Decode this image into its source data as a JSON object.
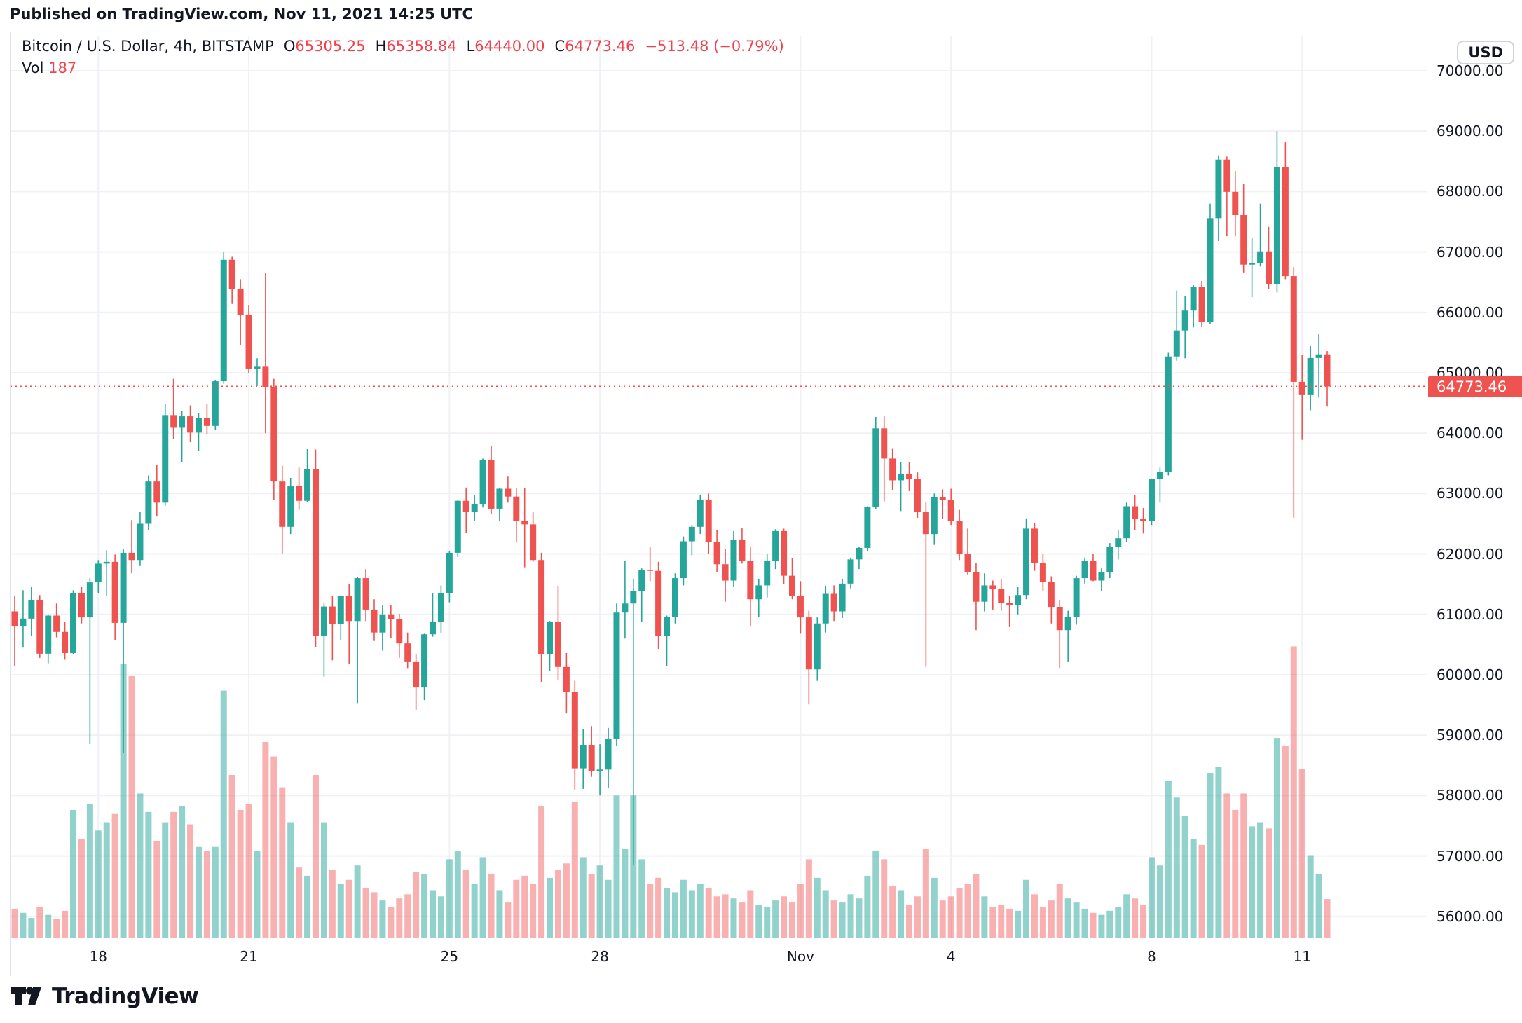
{
  "published_line": "Published on TradingView.com, Nov 11, 2021 14:25 UTC",
  "logo": {
    "brand": "TradingView"
  },
  "axis_button": "USD",
  "legend": {
    "title": "Bitcoin / U.S. Dollar, 4h, BITSTAMP",
    "ohlc": [
      {
        "label": "O",
        "value": "65305.25"
      },
      {
        "label": "H",
        "value": "65358.84"
      },
      {
        "label": "L",
        "value": "64440.00"
      },
      {
        "label": "C",
        "value": "64773.46"
      }
    ],
    "change": "−513.48 (−0.79%)",
    "vol_label": "Vol",
    "vol_value": "187"
  },
  "colors": {
    "up": "#26a69a",
    "down": "#ef5350",
    "vol_up": "rgba(38,166,154,0.5)",
    "vol_down": "rgba(239,83,80,0.45)",
    "grid": "#f0f1f4",
    "dotted_line": "#ef5350",
    "chip_bg": "#ef5350",
    "text": "#131722",
    "border": "#e0e3eb"
  },
  "chart_data": {
    "type": "candlestick+volume",
    "title": "Bitcoin / U.S. Dollar",
    "exchange": "BITSTAMP",
    "interval": "4h",
    "legend_note": "grid on; price axis right; volume overlay bottom",
    "price_axis": {
      "min": 56000,
      "max": 70000,
      "step": 1000,
      "decimals": 2,
      "last_price": 64773.46
    },
    "time_axis": {
      "start": "2021-10-16 08:00 UTC",
      "candles_per_day": 6,
      "labels": [
        {
          "index": 10,
          "text": "18"
        },
        {
          "index": 28,
          "text": "21"
        },
        {
          "index": 52,
          "text": "25"
        },
        {
          "index": 70,
          "text": "28"
        },
        {
          "index": 94,
          "text": "Nov"
        },
        {
          "index": 112,
          "text": "4"
        },
        {
          "index": 136,
          "text": "8"
        },
        {
          "index": 154,
          "text": "11"
        }
      ]
    },
    "volume_axis": {
      "max_units": 1430,
      "last_volume": 187
    },
    "candles": [
      [
        61050,
        61300,
        60150,
        60800,
        140
      ],
      [
        60800,
        61400,
        60450,
        60930,
        120
      ],
      [
        60930,
        61450,
        60650,
        61230,
        95
      ],
      [
        61230,
        61320,
        60280,
        60350,
        150
      ],
      [
        60350,
        61000,
        60190,
        60980,
        110
      ],
      [
        60980,
        61180,
        60620,
        60710,
        90
      ],
      [
        60710,
        60880,
        60250,
        60360,
        130
      ],
      [
        60360,
        61400,
        60340,
        61350,
        620
      ],
      [
        61350,
        61450,
        60850,
        60950,
        480
      ],
      [
        60950,
        61600,
        58850,
        61530,
        650
      ],
      [
        61530,
        61900,
        61350,
        61840,
        520
      ],
      [
        61840,
        62060,
        61300,
        61870,
        560
      ],
      [
        61870,
        61990,
        60580,
        60860,
        600
      ],
      [
        60860,
        62080,
        58700,
        62020,
        1330
      ],
      [
        62020,
        62560,
        61680,
        61900,
        1270
      ],
      [
        61900,
        62700,
        61800,
        62500,
        700
      ],
      [
        62500,
        63300,
        62400,
        63200,
        610
      ],
      [
        63200,
        63480,
        62620,
        62850,
        470
      ],
      [
        62850,
        64480,
        62800,
        64300,
        560
      ],
      [
        64300,
        64900,
        63900,
        64090,
        610
      ],
      [
        64090,
        64370,
        63520,
        64280,
        640
      ],
      [
        64280,
        64460,
        63850,
        64010,
        550
      ],
      [
        64010,
        64330,
        63700,
        64250,
        440
      ],
      [
        64250,
        64490,
        63990,
        64120,
        420
      ],
      [
        64120,
        64880,
        64060,
        64860,
        440
      ],
      [
        64860,
        67000,
        64820,
        66870,
        1200
      ],
      [
        66870,
        66920,
        66140,
        66390,
        790
      ],
      [
        66390,
        66550,
        65460,
        65960,
        620
      ],
      [
        65960,
        66120,
        65000,
        65070,
        650
      ],
      [
        65070,
        65240,
        64780,
        65100,
        420
      ],
      [
        65100,
        66650,
        64000,
        64760,
        950
      ],
      [
        64760,
        64900,
        62900,
        63200,
        880
      ],
      [
        63200,
        63460,
        62000,
        62450,
        730
      ],
      [
        62450,
        63260,
        62330,
        63130,
        560
      ],
      [
        63130,
        63430,
        62730,
        62880,
        340
      ],
      [
        62880,
        63735,
        62860,
        63400,
        300
      ],
      [
        63400,
        63730,
        60460,
        60650,
        790
      ],
      [
        60650,
        61180,
        59970,
        61130,
        560
      ],
      [
        61130,
        61310,
        60240,
        60840,
        330
      ],
      [
        60840,
        61315,
        60580,
        61310,
        260
      ],
      [
        61310,
        61500,
        60180,
        60890,
        280
      ],
      [
        60890,
        61620,
        59520,
        61600,
        350
      ],
      [
        61600,
        61750,
        60890,
        61080,
        240
      ],
      [
        61080,
        61250,
        60560,
        60700,
        220
      ],
      [
        60700,
        61150,
        60400,
        61000,
        180
      ],
      [
        61000,
        61150,
        60610,
        60920,
        150
      ],
      [
        60920,
        61010,
        60280,
        60520,
        190
      ],
      [
        60520,
        60700,
        60100,
        60210,
        210
      ],
      [
        60210,
        60350,
        59420,
        59790,
        320
      ],
      [
        59790,
        60680,
        59580,
        60670,
        310
      ],
      [
        60670,
        61350,
        60630,
        60870,
        230
      ],
      [
        60870,
        61480,
        60690,
        61350,
        200
      ],
      [
        61350,
        62050,
        61200,
        62020,
        380
      ],
      [
        62020,
        62900,
        61950,
        62880,
        420
      ],
      [
        62880,
        63100,
        62350,
        62700,
        330
      ],
      [
        62700,
        62980,
        62550,
        62830,
        260
      ],
      [
        62830,
        63580,
        62770,
        63560,
        390
      ],
      [
        63560,
        63790,
        62660,
        62750,
        310
      ],
      [
        62750,
        63100,
        62540,
        63080,
        230
      ],
      [
        63080,
        63280,
        62850,
        62950,
        170
      ],
      [
        62950,
        63090,
        62200,
        62550,
        280
      ],
      [
        62550,
        63090,
        61780,
        62490,
        300
      ],
      [
        62490,
        62700,
        61870,
        61900,
        260
      ],
      [
        61900,
        62020,
        59880,
        60340,
        640
      ],
      [
        60340,
        60890,
        60070,
        60870,
        290
      ],
      [
        60870,
        61470,
        59910,
        60130,
        330
      ],
      [
        60130,
        60360,
        59360,
        59720,
        360
      ],
      [
        59720,
        59900,
        58100,
        58450,
        660
      ],
      [
        58450,
        59100,
        58110,
        58840,
        390
      ],
      [
        58840,
        59150,
        58310,
        58400,
        310
      ],
      [
        58400,
        58850,
        58000,
        58430,
        350
      ],
      [
        58430,
        59120,
        58130,
        58940,
        280
      ],
      [
        58940,
        61180,
        58820,
        61030,
        690
      ],
      [
        61030,
        61880,
        60600,
        61180,
        430
      ],
      [
        61180,
        61580,
        56850,
        61390,
        690
      ],
      [
        61390,
        61760,
        60880,
        61740,
        380
      ],
      [
        61740,
        62120,
        61550,
        61720,
        260
      ],
      [
        61720,
        61870,
        60430,
        60640,
        290
      ],
      [
        60640,
        60980,
        60150,
        60960,
        240
      ],
      [
        60960,
        61680,
        60850,
        61600,
        220
      ],
      [
        61600,
        62290,
        61480,
        62210,
        280
      ],
      [
        62210,
        62480,
        61980,
        62450,
        230
      ],
      [
        62450,
        62980,
        62330,
        62900,
        260
      ],
      [
        62900,
        63000,
        62000,
        62200,
        240
      ],
      [
        62200,
        62390,
        61700,
        61830,
        200
      ],
      [
        61830,
        62080,
        61210,
        61560,
        210
      ],
      [
        61560,
        62380,
        61450,
        62230,
        190
      ],
      [
        62230,
        62430,
        61840,
        61890,
        170
      ],
      [
        61890,
        62110,
        60800,
        61250,
        230
      ],
      [
        61250,
        61590,
        60950,
        61480,
        160
      ],
      [
        61480,
        62000,
        61280,
        61880,
        150
      ],
      [
        61880,
        62410,
        61750,
        62380,
        180
      ],
      [
        62380,
        62420,
        61500,
        61640,
        200
      ],
      [
        61640,
        61930,
        61250,
        61310,
        170
      ],
      [
        61310,
        61550,
        60680,
        60950,
        260
      ],
      [
        60950,
        61060,
        59510,
        60090,
        380
      ],
      [
        60090,
        60950,
        59900,
        60850,
        290
      ],
      [
        60850,
        61470,
        60700,
        61340,
        230
      ],
      [
        61340,
        61480,
        60890,
        61050,
        180
      ],
      [
        61050,
        61590,
        60940,
        61510,
        170
      ],
      [
        61510,
        61940,
        61430,
        61910,
        210
      ],
      [
        61910,
        62120,
        61750,
        62100,
        190
      ],
      [
        62100,
        62790,
        62050,
        62780,
        300
      ],
      [
        62780,
        64270,
        62740,
        64080,
        420
      ],
      [
        64080,
        64280,
        62870,
        63580,
        380
      ],
      [
        63580,
        63740,
        63060,
        63220,
        250
      ],
      [
        63220,
        63520,
        62710,
        63330,
        230
      ],
      [
        63330,
        63520,
        63040,
        63240,
        160
      ],
      [
        63240,
        63350,
        62600,
        62700,
        200
      ],
      [
        62700,
        62860,
        60130,
        62330,
        430
      ],
      [
        62330,
        63000,
        62150,
        62940,
        290
      ],
      [
        62940,
        63070,
        62580,
        62890,
        180
      ],
      [
        62890,
        63080,
        62480,
        62550,
        200
      ],
      [
        62550,
        62730,
        61900,
        62000,
        240
      ],
      [
        62000,
        62420,
        61660,
        61700,
        260
      ],
      [
        61700,
        61850,
        60740,
        61210,
        310
      ],
      [
        61210,
        61680,
        61050,
        61480,
        200
      ],
      [
        61480,
        61560,
        61080,
        61420,
        150
      ],
      [
        61420,
        61590,
        61060,
        61190,
        160
      ],
      [
        61190,
        61300,
        60790,
        61150,
        140
      ],
      [
        61150,
        61450,
        61000,
        61320,
        130
      ],
      [
        61320,
        62590,
        61250,
        62420,
        280
      ],
      [
        62420,
        62510,
        61720,
        61850,
        210
      ],
      [
        61850,
        62000,
        61390,
        61540,
        150
      ],
      [
        61540,
        61630,
        60850,
        61120,
        180
      ],
      [
        61120,
        61230,
        60100,
        60740,
        260
      ],
      [
        60740,
        61060,
        60210,
        60960,
        190
      ],
      [
        60960,
        61640,
        60830,
        61600,
        170
      ],
      [
        61600,
        61940,
        61510,
        61880,
        140
      ],
      [
        61880,
        62000,
        61550,
        61560,
        120
      ],
      [
        61560,
        61760,
        61380,
        61700,
        110
      ],
      [
        61700,
        62180,
        61600,
        62120,
        130
      ],
      [
        62120,
        62400,
        61910,
        62260,
        150
      ],
      [
        62260,
        62850,
        62200,
        62790,
        210
      ],
      [
        62790,
        62980,
        62390,
        62580,
        190
      ],
      [
        62580,
        62760,
        62340,
        62550,
        160
      ],
      [
        62550,
        63250,
        62480,
        63240,
        390
      ],
      [
        63240,
        63430,
        62850,
        63360,
        350
      ],
      [
        63360,
        65330,
        63300,
        65270,
        760
      ],
      [
        65270,
        66360,
        65200,
        65700,
        680
      ],
      [
        65700,
        66270,
        65240,
        66030,
        590
      ],
      [
        66030,
        66450,
        65750,
        66425,
        480
      ],
      [
        66425,
        66520,
        65755,
        65840,
        450
      ],
      [
        65840,
        67800,
        65800,
        67560,
        800
      ],
      [
        67560,
        68600,
        67180,
        68530,
        830
      ],
      [
        68530,
        68580,
        67260,
        67995,
        700
      ],
      [
        67995,
        68340,
        67260,
        67610,
        620
      ],
      [
        67610,
        68130,
        66660,
        66790,
        700
      ],
      [
        66790,
        67230,
        66250,
        66820,
        540
      ],
      [
        66820,
        67800,
        66760,
        67010,
        560
      ],
      [
        67010,
        67415,
        66380,
        66470,
        530
      ],
      [
        66470,
        69000,
        66330,
        68400,
        970
      ],
      [
        68400,
        68815,
        66550,
        66600,
        930
      ],
      [
        66600,
        66750,
        62600,
        64850,
        1415
      ],
      [
        64850,
        65290,
        63890,
        64630,
        820
      ],
      [
        64630,
        65440,
        64380,
        65245,
        400
      ],
      [
        65245,
        65640,
        64590,
        65305,
        310
      ],
      [
        65305,
        65358.84,
        64440,
        64773.46,
        187
      ]
    ]
  }
}
